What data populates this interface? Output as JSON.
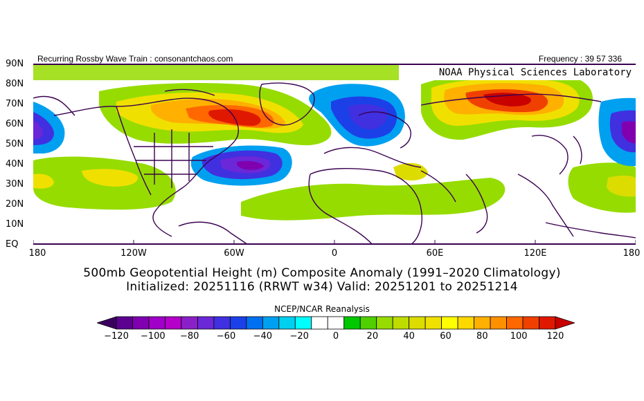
{
  "header": {
    "left": "Recurring Rossby Wave Train : consonantchaos.com",
    "right": "Frequency : 39 57 336"
  },
  "map": {
    "credit": "NOAA Physical Sciences Laboratory",
    "lat_labels": [
      "90N",
      "80N",
      "70N",
      "60N",
      "50N",
      "40N",
      "30N",
      "20N",
      "10N",
      "EQ"
    ],
    "lon_labels": [
      "180",
      "120W",
      "60W",
      "0",
      "60E",
      "120E",
      "180"
    ]
  },
  "caption": {
    "line1": "500mb Geopotential Height (m) Composite Anomaly (1991–2020 Climatology)",
    "line2": "Initialized: 20251116 (RRWT w34) Valid: 20251201 to 20251214"
  },
  "source": "NCEP/NCAR Reanalysis",
  "colorbar": {
    "labels": [
      "−120",
      "−100",
      "−80",
      "−60",
      "−40",
      "−20",
      "0",
      "20",
      "40",
      "60",
      "80",
      "100",
      "120"
    ],
    "colors": [
      "#3a0060",
      "#5c0090",
      "#8000b0",
      "#a000c8",
      "#b400c8",
      "#8c20c8",
      "#6a28d8",
      "#4030e0",
      "#1c40e8",
      "#0070f0",
      "#00a0f0",
      "#00d0f0",
      "#00ffff",
      "#ffffff",
      "#ffffff",
      "#00c800",
      "#50d000",
      "#96dc00",
      "#bedc00",
      "#dcdc00",
      "#f0e000",
      "#ffff00",
      "#ffd800",
      "#ffb000",
      "#ff9000",
      "#ff6800",
      "#f04000",
      "#e01800",
      "#c80000"
    ]
  }
}
